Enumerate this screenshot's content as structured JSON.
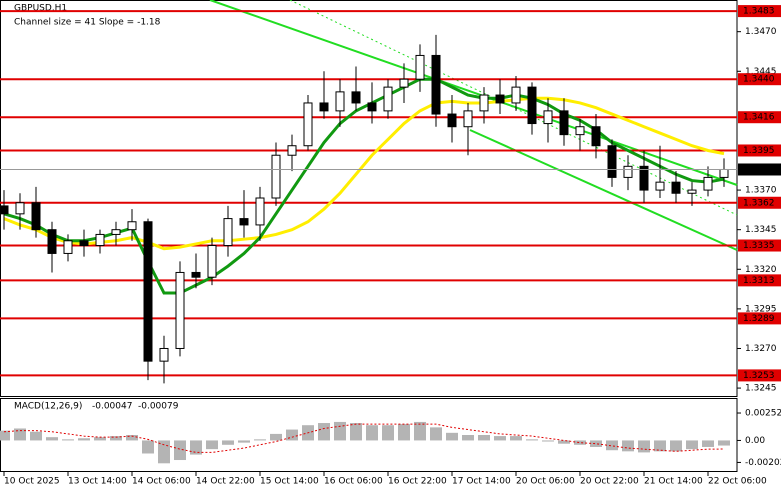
{
  "chart_data": {
    "type": "candlestick",
    "title": "GBPUSD,H1",
    "subtitle": "Channel size = 41 Slope = -1.18",
    "categories": [
      "10 Oct 2025",
      null,
      null,
      null,
      "13 Oct 14:00",
      null,
      null,
      null,
      "14 Oct 06:00",
      null,
      null,
      null,
      "14 Oct 22:00",
      null,
      null,
      null,
      "15 Oct 14:00",
      null,
      null,
      null,
      "16 Oct 06:00",
      null,
      null,
      null,
      "16 Oct 22:00",
      null,
      null,
      null,
      "17 Oct 14:00",
      null,
      null,
      null,
      "20 Oct 06:00",
      null,
      null,
      null,
      "20 Oct 22:00",
      null,
      null,
      null,
      "21 Oct 14:00",
      null,
      null,
      null,
      "22 Oct 06:00",
      null
    ],
    "candles": {
      "open": [
        1.336,
        1.3355,
        1.3362,
        1.3345,
        1.333,
        1.3338,
        1.3335,
        1.3342,
        1.3345,
        1.335,
        1.3262,
        1.327,
        1.3318,
        1.3315,
        1.3335,
        1.3352,
        1.3348,
        1.3365,
        1.3392,
        1.3398,
        1.3425,
        1.342,
        1.3432,
        1.3425,
        1.342,
        1.3435,
        1.344,
        1.3455,
        1.3418,
        1.341,
        1.342,
        1.343,
        1.3425,
        1.3435,
        1.3412,
        1.342,
        1.3405,
        1.341,
        1.3398,
        1.3378,
        1.3385,
        1.337,
        1.3375,
        1.3368,
        1.337,
        1.3378
      ],
      "high": [
        1.337,
        1.3368,
        1.3372,
        1.335,
        1.3342,
        1.3345,
        1.3345,
        1.335,
        1.3358,
        1.3352,
        1.3278,
        1.3325,
        1.333,
        1.334,
        1.336,
        1.337,
        1.3372,
        1.34,
        1.3405,
        1.343,
        1.3445,
        1.344,
        1.3448,
        1.3438,
        1.344,
        1.345,
        1.3462,
        1.3468,
        1.343,
        1.3425,
        1.3435,
        1.344,
        1.3442,
        1.3438,
        1.3428,
        1.3428,
        1.3415,
        1.3418,
        1.3402,
        1.3392,
        1.3395,
        1.3398,
        1.3382,
        1.3375,
        1.3385,
        1.339
      ],
      "low": [
        1.3345,
        1.3345,
        1.334,
        1.3318,
        1.3325,
        1.3328,
        1.333,
        1.3335,
        1.3338,
        1.325,
        1.3248,
        1.3265,
        1.3308,
        1.331,
        1.3328,
        1.334,
        1.3338,
        1.336,
        1.3382,
        1.3395,
        1.3415,
        1.341,
        1.342,
        1.3412,
        1.3415,
        1.3425,
        1.3432,
        1.341,
        1.34,
        1.3392,
        1.3412,
        1.3418,
        1.342,
        1.3405,
        1.34,
        1.3398,
        1.3395,
        1.339,
        1.3372,
        1.337,
        1.3362,
        1.3365,
        1.3362,
        1.336,
        1.3366,
        1.3372
      ],
      "close": [
        1.3355,
        1.3362,
        1.3345,
        1.333,
        1.3338,
        1.3335,
        1.3342,
        1.3345,
        1.335,
        1.3262,
        1.327,
        1.3318,
        1.3315,
        1.3335,
        1.3352,
        1.3348,
        1.3365,
        1.3392,
        1.3398,
        1.3425,
        1.342,
        1.3432,
        1.3425,
        1.342,
        1.3435,
        1.344,
        1.3455,
        1.3418,
        1.341,
        1.342,
        1.343,
        1.3425,
        1.3435,
        1.3412,
        1.342,
        1.3405,
        1.341,
        1.3398,
        1.3378,
        1.3385,
        1.337,
        1.3375,
        1.3368,
        1.337,
        1.3378,
        1.3383
      ]
    },
    "candle_colors": {
      "up": "#ffffff",
      "down": "#000000",
      "outline": "#000000"
    },
    "series": [
      {
        "color": "#ffee00",
        "values": [
          1.3352,
          1.3348,
          1.3345,
          1.334,
          1.3337,
          1.3336,
          1.3337,
          1.3338,
          1.334,
          1.3337,
          1.3333,
          1.3334,
          1.3336,
          1.3338,
          1.3338,
          1.3339,
          1.334,
          1.3342,
          1.3345,
          1.335,
          1.3358,
          1.3368,
          1.338,
          1.3392,
          1.3402,
          1.3412,
          1.342,
          1.3425,
          1.3426,
          1.3425,
          1.3425,
          1.3426,
          1.3427,
          1.3428,
          1.3428,
          1.3427,
          1.3425,
          1.3422,
          1.3418,
          1.3414,
          1.341,
          1.3406,
          1.3402,
          1.3398,
          1.3395,
          1.3393
        ]
      },
      {
        "color": "#119911",
        "values": [
          1.3355,
          1.3352,
          1.3348,
          1.3342,
          1.3338,
          1.3338,
          1.334,
          1.3343,
          1.3346,
          1.3325,
          1.3305,
          1.3305,
          1.331,
          1.3315,
          1.3322,
          1.333,
          1.334,
          1.3355,
          1.337,
          1.3385,
          1.34,
          1.3412,
          1.342,
          1.3425,
          1.343,
          1.3435,
          1.344,
          1.344,
          1.3435,
          1.343,
          1.3428,
          1.3428,
          1.343,
          1.3428,
          1.3424,
          1.3418,
          1.3414,
          1.3408,
          1.34,
          1.3395,
          1.339,
          1.3385,
          1.338,
          1.3376,
          1.3375,
          1.3377
        ]
      }
    ],
    "ylim": [
      1.324,
      1.349
    ],
    "yticks": [
      {
        "value": 1.347,
        "label": "1.3470"
      },
      1.3445,
      {
        "value": 1.337,
        "label": "1.3370"
      },
      1.3345,
      {
        "value": 1.332,
        "label": "1.3320"
      },
      1.3295,
      {
        "value": 1.327,
        "label": "1.3270"
      },
      1.3245
    ],
    "levels": [
      1.3483,
      {
        "value": 1.344,
        "label": "1.3440"
      },
      1.3416,
      1.3395,
      1.3362,
      1.3335,
      1.3313,
      1.3289,
      1.3253
    ],
    "level_color": "#e00000",
    "current_price": 1.3383,
    "macd": {
      "title": "MACD(12,26,9)",
      "histogram": [
        0.0009,
        0.0011,
        0.0008,
        0.0003,
        0.0001,
        0.0002,
        0.0003,
        0.0004,
        0.0005,
        -0.0012,
        -0.0021,
        -0.0018,
        -0.0013,
        -0.0008,
        -0.0004,
        -0.0002,
        0.0001,
        0.0006,
        0.001,
        0.0014,
        0.0016,
        0.0017,
        0.0016,
        0.0014,
        0.0014,
        0.0015,
        0.0017,
        0.0012,
        0.0007,
        0.0005,
        0.0005,
        0.0004,
        0.0004,
        0.0001,
        -0.0001,
        -0.0003,
        -0.0004,
        -0.0006,
        -0.0009,
        -0.001,
        -0.0011,
        -0.001,
        -0.001,
        -0.0008,
        -0.0006,
        -0.00047
      ],
      "signal": [
        0.0008,
        0.0009,
        0.0009,
        0.0008,
        0.0006,
        0.0004,
        0.0003,
        0.0003,
        0.0004,
        0.0001,
        -0.0004,
        -0.0008,
        -0.0011,
        -0.0011,
        -0.0009,
        -0.0007,
        -0.0004,
        -0.0001,
        0.0003,
        0.0007,
        0.0011,
        0.0013,
        0.0015,
        0.0015,
        0.0015,
        0.0015,
        0.0015,
        0.0015,
        0.0012,
        0.001,
        0.0008,
        0.0006,
        0.0005,
        0.0004,
        0.0002,
        0.0,
        -0.0002,
        -0.0003,
        -0.0005,
        -0.0007,
        -0.0008,
        -0.0009,
        -0.001,
        -0.0009,
        -0.0008,
        -0.00079
      ],
      "histogram_color": "#b4b4b4",
      "signal_color": "#e00000",
      "ylim": [
        -0.0029,
        0.0039
      ],
      "yticks": [
        0.00252,
        {
          "value": 0,
          "label": "0.00"
        },
        -0.00202
      ]
    }
  }
}
